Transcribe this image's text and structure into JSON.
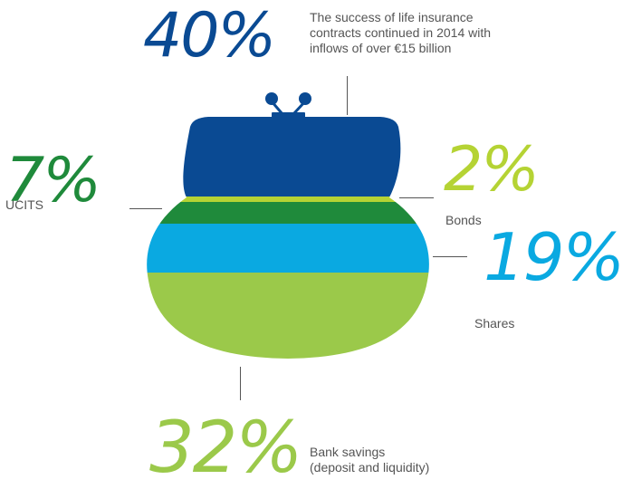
{
  "colors": {
    "life_insurance": "#0a4a93",
    "ucits": "#1f8a3b",
    "bonds": "#b5d334",
    "shares": "#0aa9e1",
    "bank_savings": "#9bc94a",
    "text": "#555555"
  },
  "segments": [
    {
      "key": "life_insurance",
      "percent": "40%",
      "value": 40,
      "label": "The success of life insurance\ncontracts continued in 2014 with\ninflows of over €15 billion"
    },
    {
      "key": "ucits",
      "percent": "7%",
      "value": 7,
      "label": "UCITS"
    },
    {
      "key": "bonds",
      "percent": "2%",
      "value": 2,
      "label": "Bonds"
    },
    {
      "key": "shares",
      "percent": "19%",
      "value": 19,
      "label": "Shares"
    },
    {
      "key": "bank_savings",
      "percent": "32%",
      "value": 32,
      "label": "Bank savings\n(deposit and liquidity)"
    }
  ]
}
